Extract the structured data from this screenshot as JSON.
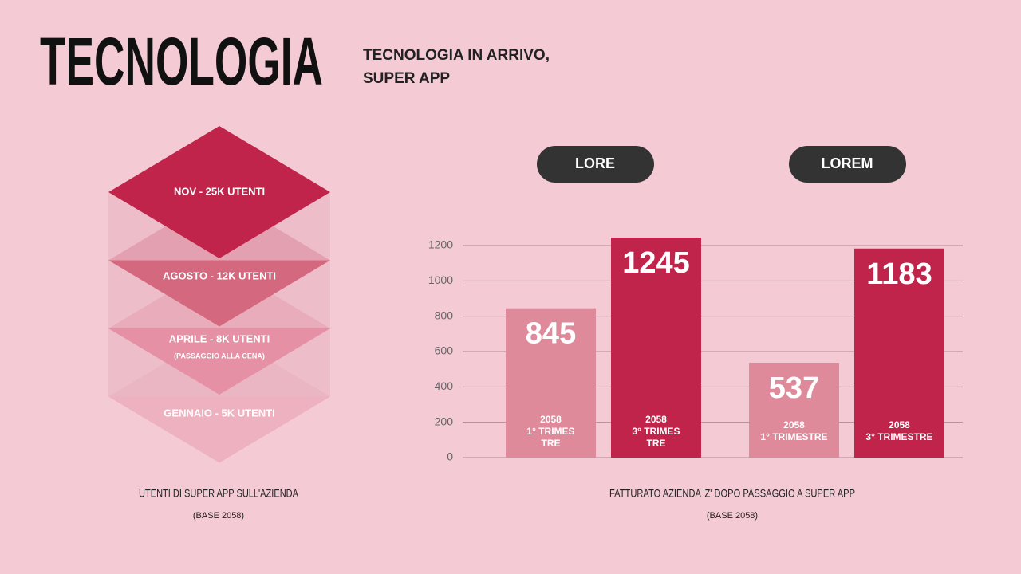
{
  "header": {
    "title": "TECNOLOGIA",
    "subtitle": [
      "TECNOLOGIA IN ARRIVO,",
      "SUPER APP"
    ]
  },
  "diagram": {
    "layers": [
      {
        "label": "NOV - 25K UTENTI"
      },
      {
        "label": "AGOSTO - 12K UTENTI"
      },
      {
        "label": "APRILE - 8K UTENTI",
        "note": "(PASSAGGIO ALLA CENA)"
      },
      {
        "label": "GENNAIO - 5K UTENTI"
      }
    ],
    "caption": "UTENTI DI SUPER APP SULL'AZIENDA",
    "caption_note": "(BASE 2058)"
  },
  "chart_data": {
    "type": "bar",
    "caption": "FATTURATO AZIENDA 'Z' DOPO PASSAGGIO A SUPER APP",
    "caption_note": "(BASE 2058)",
    "groups": [
      {
        "name": "LORE",
        "bars": [
          {
            "label": [
              "2058",
              "1° TRIMES",
              "TRE"
            ],
            "value": 845,
            "color": "#de8a9b"
          },
          {
            "label": [
              "2058",
              "3° TRIMES",
              "TRE"
            ],
            "value": 1245,
            "color": "#c0244a"
          }
        ]
      },
      {
        "name": "LOREM",
        "bars": [
          {
            "label": [
              "2058",
              "1° TRIMESTRE"
            ],
            "value": 537,
            "color": "#de8a9b"
          },
          {
            "label": [
              "2058",
              "3° TRIMESTRE"
            ],
            "value": 1183,
            "color": "#c0244a"
          }
        ]
      }
    ],
    "ylim": [
      0,
      1200
    ],
    "yticks": [
      0,
      200,
      400,
      600,
      800,
      1000,
      1200
    ],
    "grid": true
  }
}
